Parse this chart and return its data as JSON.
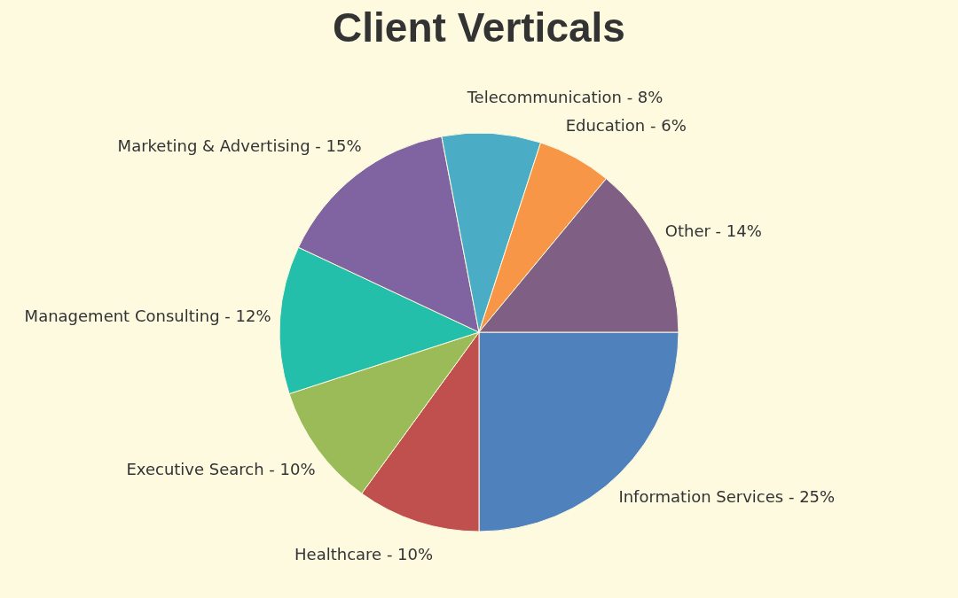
{
  "chart_data": {
    "type": "pie",
    "title": "Client Verticals",
    "categories": [
      "Information Services",
      "Healthcare",
      "Executive Search",
      "Management Consulting",
      "Marketing & Advertising",
      "Telecommunication",
      "Education",
      "Other"
    ],
    "values": [
      25,
      10,
      10,
      12,
      15,
      8,
      6,
      14
    ],
    "value_labels": [
      "25%",
      "10%",
      "10%",
      "12%",
      "15%",
      "8%",
      "6%",
      "14%"
    ],
    "colors": [
      "#4f81bc",
      "#c0504e",
      "#9bbb58",
      "#23bfaa",
      "#8064a1",
      "#4aacc5",
      "#f79647",
      "#7f6084"
    ],
    "legend": false
  }
}
